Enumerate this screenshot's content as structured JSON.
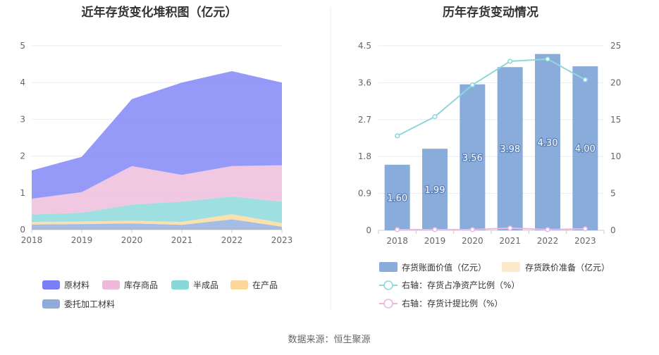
{
  "colors": {
    "raw": "#7B7FF5",
    "finished": "#EDBADB",
    "semi": "#86D8D9",
    "wip": "#FBD89A",
    "outsourced": "#8FABDC",
    "bar": "#8AACDB",
    "bar_label_bg": "#8AACDB",
    "ratio_line": "#8ED8DC",
    "provision_line": "#EAB7E3",
    "grid": "#E9EBF0",
    "axis": "#CCCCCC"
  },
  "source": "数据来源：恒生聚源",
  "chart_data": [
    {
      "type": "area",
      "title": "近年存货变化堆积图（亿元）",
      "x": [
        "2018",
        "2019",
        "2020",
        "2021",
        "2022",
        "2023"
      ],
      "ylim": [
        0,
        5
      ],
      "yticks": [
        "0",
        "1",
        "2",
        "3",
        "4",
        "5"
      ],
      "stacked": true,
      "series": [
        {
          "name": "委托加工材料",
          "color_key": "outsourced",
          "values": [
            0.14,
            0.15,
            0.17,
            0.13,
            0.28,
            0.08
          ]
        },
        {
          "name": "在产品",
          "color_key": "wip",
          "values": [
            0.07,
            0.07,
            0.07,
            0.08,
            0.14,
            0.1
          ]
        },
        {
          "name": "半成品",
          "color_key": "semi",
          "values": [
            0.2,
            0.24,
            0.44,
            0.55,
            0.48,
            0.58
          ]
        },
        {
          "name": "库存商品",
          "color_key": "finished",
          "values": [
            0.43,
            0.56,
            1.05,
            0.73,
            0.83,
            0.99
          ]
        },
        {
          "name": "原材料",
          "color_key": "raw",
          "values": [
            0.77,
            0.96,
            1.82,
            2.51,
            2.58,
            2.25
          ]
        }
      ],
      "legend": [
        "原材料",
        "库存商品",
        "半成品",
        "在产品",
        "委托加工材料"
      ]
    },
    {
      "type": "bar",
      "title": "历年存货变动情况",
      "categories": [
        "2018",
        "2019",
        "2020",
        "2021",
        "2022",
        "2023"
      ],
      "ylim_left": [
        0,
        4.5
      ],
      "yticks_left": [
        "0",
        "0.9",
        "1.8",
        "2.7",
        "3.6",
        "4.5"
      ],
      "ylim_right": [
        0,
        25
      ],
      "yticks_right": [
        "0",
        "5",
        "10",
        "15",
        "20",
        "25"
      ],
      "series": [
        {
          "name": "存货账面价值（亿元）",
          "kind": "bar",
          "axis": "left",
          "values": [
            1.6,
            1.99,
            3.56,
            3.98,
            4.3,
            4.0
          ],
          "labels": [
            "1.60",
            "1.99",
            "3.56",
            "3.98",
            "4.30",
            "4.00"
          ]
        },
        {
          "name": "存货跌价准备（亿元）",
          "kind": "bar",
          "axis": "left",
          "values": [
            0,
            0,
            0,
            0,
            0,
            0
          ]
        },
        {
          "name": "右轴：存货占净资产比例（%）",
          "kind": "line",
          "axis": "right",
          "values": [
            12.8,
            15.4,
            19.7,
            22.9,
            23.2,
            20.4
          ]
        },
        {
          "name": "右轴：存货计提比例（%）",
          "kind": "line",
          "axis": "right",
          "values": [
            0.1,
            0.1,
            0.1,
            0.3,
            0.1,
            0.2
          ]
        }
      ]
    }
  ]
}
